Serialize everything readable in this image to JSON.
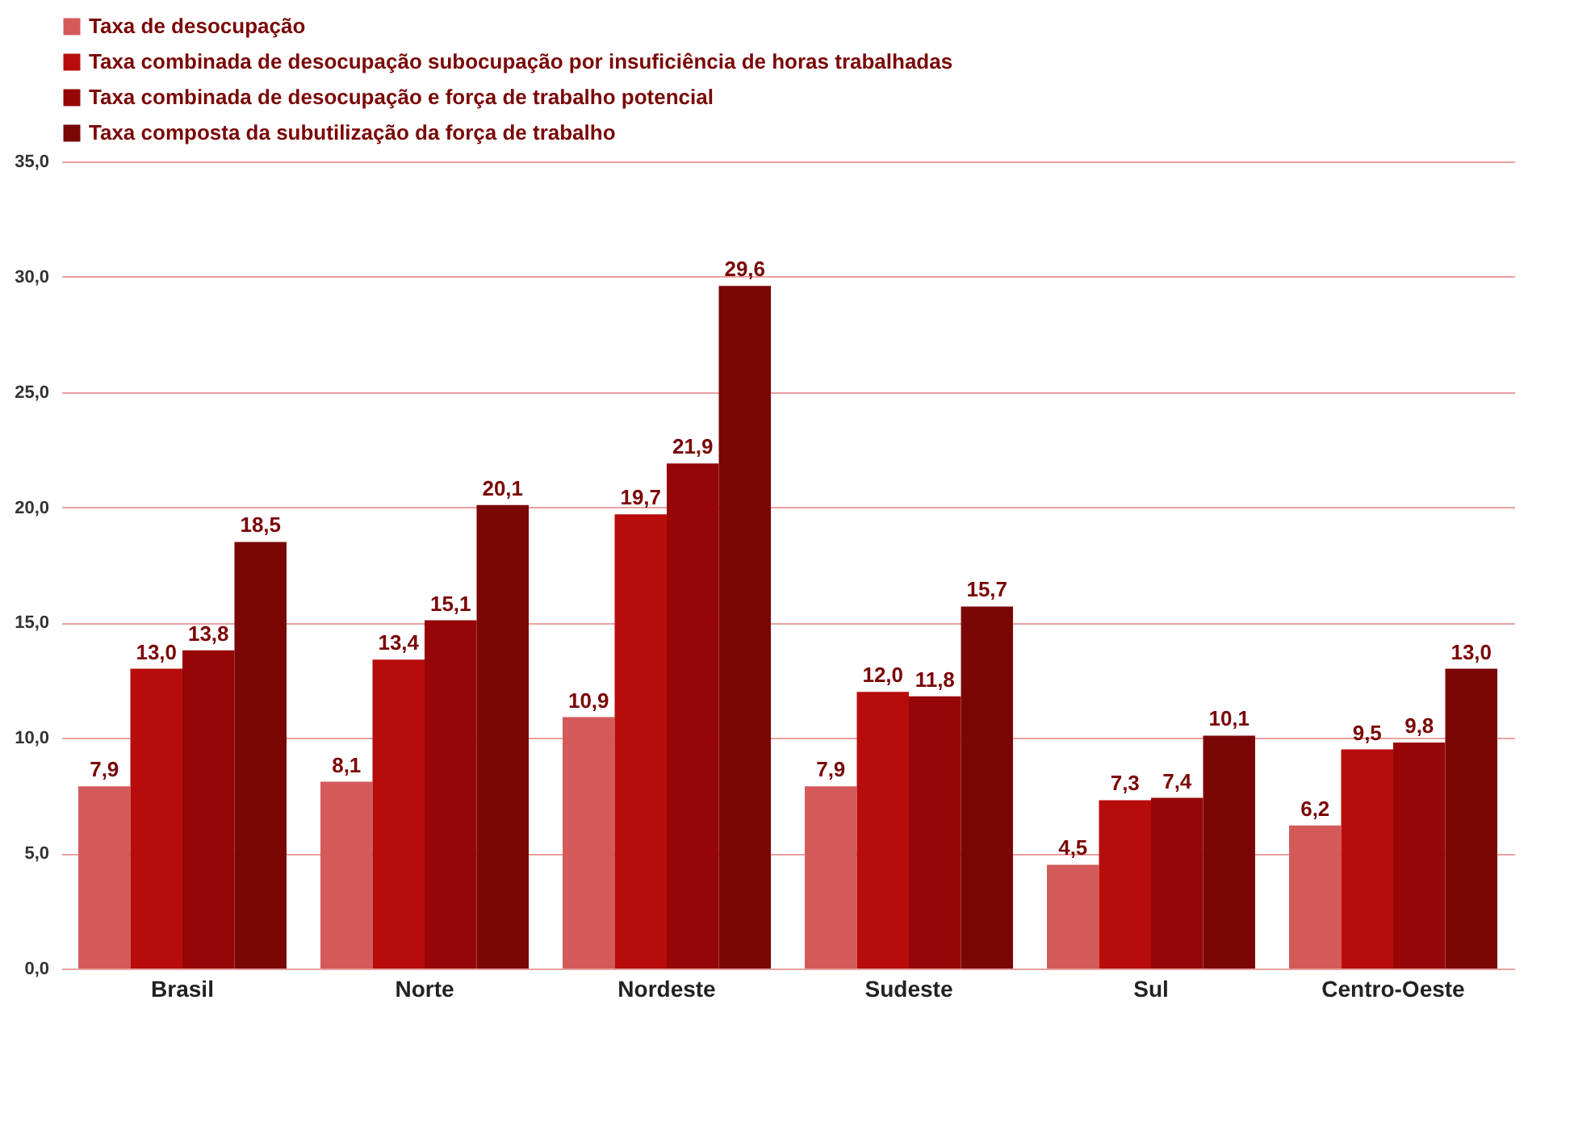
{
  "chart_data": {
    "type": "bar",
    "categories": [
      "Brasil",
      "Norte",
      "Nordeste",
      "Sudeste",
      "Sul",
      "Centro-Oeste"
    ],
    "series": [
      {
        "name": "Taxa de desocupação",
        "color": "#d45a5a",
        "values": [
          7.9,
          8.1,
          10.9,
          7.9,
          4.5,
          6.2
        ],
        "value_labels": [
          "7,9",
          "8,1",
          "10,9",
          "7,9",
          "4,5",
          "6,2"
        ]
      },
      {
        "name": "Taxa combinada de desocupação subocupação por insuficiência de horas trabalhadas",
        "color": "#b80c0c",
        "values": [
          13.0,
          13.4,
          19.7,
          12.0,
          7.3,
          9.5
        ],
        "value_labels": [
          "13,0",
          "13,4",
          "19,7",
          "12,0",
          "7,3",
          "9,5"
        ]
      },
      {
        "name": "Taxa combinada de desocupação e força de trabalho potencial",
        "color": "#960606",
        "values": [
          13.8,
          15.1,
          21.9,
          11.8,
          7.4,
          9.8
        ],
        "value_labels": [
          "13,8",
          "15,1",
          "21,9",
          "11,8",
          "7,4",
          "9,8"
        ]
      },
      {
        "name": "Taxa composta da subutilização da força de trabalho",
        "color": "#7a0606",
        "values": [
          18.5,
          20.1,
          29.6,
          15.7,
          10.1,
          13.0
        ],
        "value_labels": [
          "18,5",
          "20,1",
          "29,6",
          "15,7",
          "10,1",
          "13,0"
        ]
      }
    ],
    "ylim": [
      0,
      35
    ],
    "yticks": [
      {
        "value": 0,
        "label": "0,0"
      },
      {
        "value": 5,
        "label": "5,0"
      },
      {
        "value": 10,
        "label": "10,0"
      },
      {
        "value": 15,
        "label": "15,0"
      },
      {
        "value": 20,
        "label": "20,0"
      },
      {
        "value": 25,
        "label": "25,0"
      },
      {
        "value": 30,
        "label": "30,0"
      },
      {
        "value": 35,
        "label": "35,0"
      }
    ],
    "grid": "y",
    "legend": "top"
  }
}
